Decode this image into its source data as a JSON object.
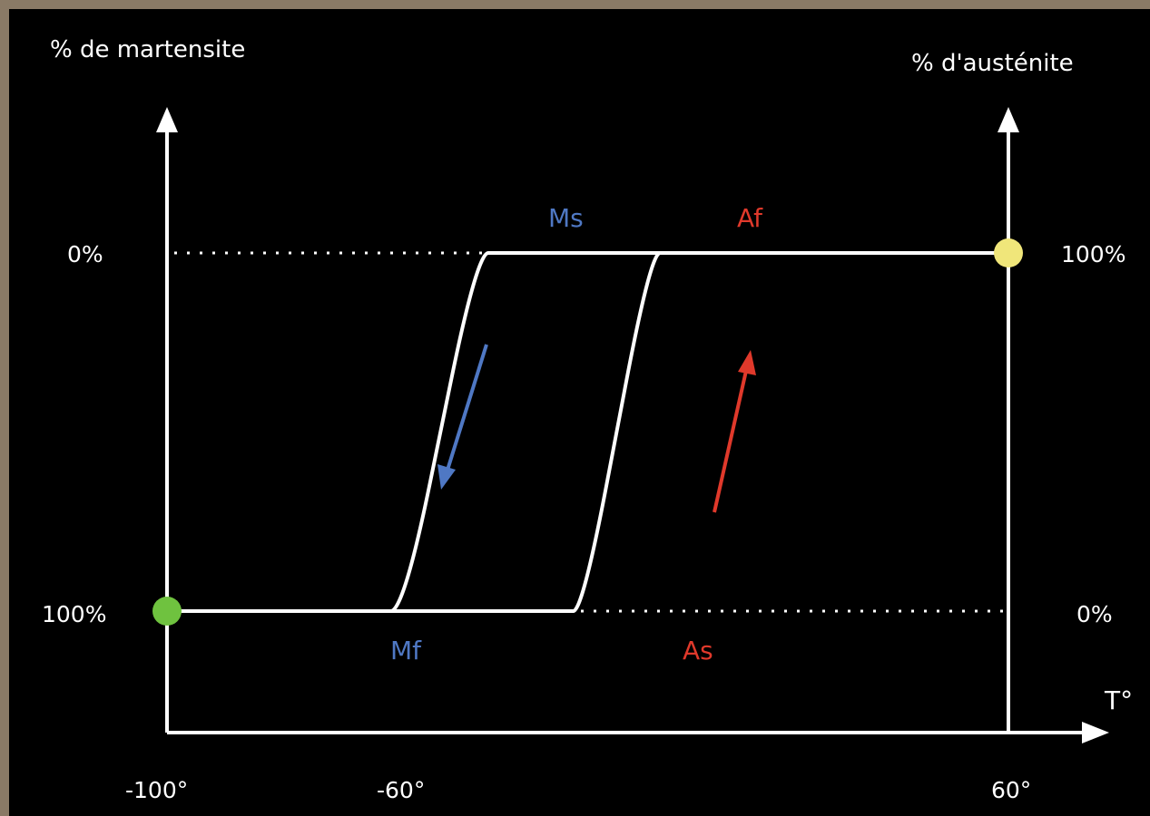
{
  "chart_data": {
    "type": "line",
    "left_axis_title": "% de martensite",
    "right_axis_title": "% d'austénite",
    "x_axis_title": "T°",
    "x_tick_labels": [
      "-100°",
      "-60°",
      "60°"
    ],
    "left_tick_labels": [
      "0%",
      "100%"
    ],
    "right_tick_labels": [
      "100%",
      "0%"
    ],
    "x_range": [
      -100,
      60
    ],
    "grid": false,
    "series": [
      {
        "role": "cooling",
        "color": "#4f78c4",
        "x": [
          -100,
          -62,
          -55,
          -41,
          -35,
          60
        ],
        "martensite_percent": [
          100,
          100,
          100,
          0,
          0,
          0
        ]
      },
      {
        "role": "heating",
        "color": "#e0392b",
        "x": [
          -100,
          -26,
          -21,
          -8,
          -3,
          60
        ],
        "martensite_percent": [
          100,
          100,
          100,
          0,
          0,
          0
        ]
      }
    ],
    "annotations": [
      {
        "text": "Ms",
        "color": "#4f78c4",
        "x": -45,
        "at": "0%"
      },
      {
        "text": "Mf",
        "color": "#4f78c4",
        "x": -64,
        "at": "100%"
      },
      {
        "text": "Af",
        "color": "#e0392b",
        "x": -5,
        "at": "0%"
      },
      {
        "text": "As",
        "color": "#e0392b",
        "x": -22,
        "at": "100%"
      }
    ],
    "markers": [
      {
        "color": "#6fc23f",
        "x": -100,
        "martensite_percent": 100
      },
      {
        "color": "#f0e67a",
        "x": 60,
        "martensite_percent": 0
      }
    ]
  }
}
